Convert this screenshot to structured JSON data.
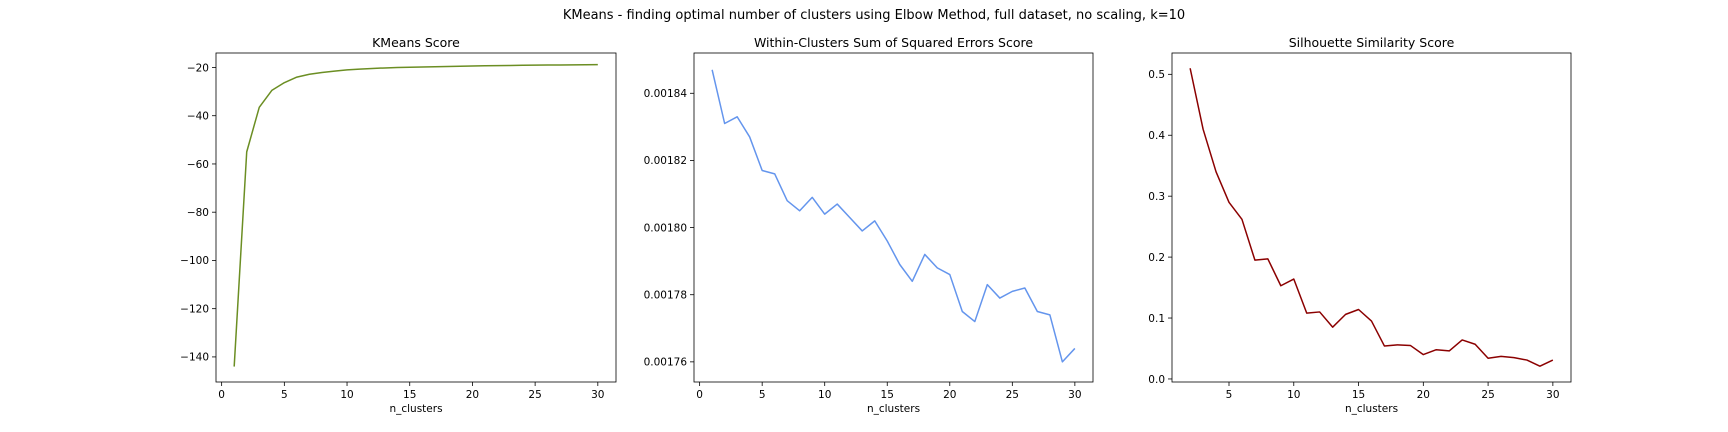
{
  "figure": {
    "suptitle": "KMeans - finding optimal number of clusters using Elbow Method, full dataset, no scaling, k=10"
  },
  "chart_data": [
    {
      "type": "line",
      "title": "KMeans Score",
      "xlabel": "n_clusters",
      "ylabel": "",
      "color": "#6b8e23",
      "xlim": [
        -0.45,
        31.45
      ],
      "ylim": [
        -150.4,
        -14.0
      ],
      "xticks": [
        0,
        5,
        10,
        15,
        20,
        25,
        30
      ],
      "yticks": [
        -140,
        -120,
        -100,
        -80,
        -60,
        -40,
        -20
      ],
      "ytick_decimals": 0,
      "x": [
        1,
        2,
        3,
        4,
        5,
        6,
        7,
        8,
        9,
        10,
        11,
        12,
        13,
        14,
        15,
        16,
        17,
        18,
        19,
        20,
        21,
        22,
        23,
        24,
        25,
        26,
        27,
        28,
        29,
        30
      ],
      "y": [
        -144.0,
        -55.0,
        -36.5,
        -29.5,
        -26.3,
        -24.0,
        -22.8,
        -22.1,
        -21.5,
        -21.0,
        -20.7,
        -20.4,
        -20.2,
        -20.0,
        -19.9,
        -19.8,
        -19.7,
        -19.6,
        -19.5,
        -19.4,
        -19.3,
        -19.25,
        -19.2,
        -19.1,
        -19.05,
        -19.0,
        -18.95,
        -18.9,
        -18.85,
        -18.8
      ]
    },
    {
      "type": "line",
      "title": "Within-Clusters Sum of Squared Errors Score",
      "xlabel": "n_clusters",
      "ylabel": "",
      "color": "#6495ed",
      "xlim": [
        -0.45,
        31.45
      ],
      "ylim": [
        0.001754,
        0.001852
      ],
      "xticks": [
        0,
        5,
        10,
        15,
        20,
        25,
        30
      ],
      "yticks": [
        0.00176,
        0.00178,
        0.0018,
        0.00182,
        0.00184
      ],
      "ytick_decimals": 5,
      "x": [
        1,
        2,
        3,
        4,
        5,
        6,
        7,
        8,
        9,
        10,
        11,
        12,
        13,
        14,
        15,
        16,
        17,
        18,
        19,
        20,
        21,
        22,
        23,
        24,
        25,
        26,
        27,
        28,
        29,
        30
      ],
      "y": [
        0.001847,
        0.001831,
        0.001833,
        0.001827,
        0.001817,
        0.001816,
        0.001808,
        0.001805,
        0.001809,
        0.001804,
        0.001807,
        0.001803,
        0.001799,
        0.001802,
        0.001796,
        0.001789,
        0.001784,
        0.001792,
        0.001788,
        0.001786,
        0.001775,
        0.001772,
        0.001783,
        0.001779,
        0.001781,
        0.001782,
        0.001775,
        0.001774,
        0.00176,
        0.001764
      ]
    },
    {
      "type": "line",
      "title": "Silhouette Similarity Score",
      "xlabel": "n_clusters",
      "ylabel": "",
      "color": "#8b0000",
      "xlim": [
        0.6,
        31.4
      ],
      "ylim": [
        -0.005,
        0.535
      ],
      "xticks": [
        5,
        10,
        15,
        20,
        25,
        30
      ],
      "yticks": [
        0.0,
        0.1,
        0.2,
        0.3,
        0.4,
        0.5
      ],
      "ytick_decimals": 1,
      "x": [
        2,
        3,
        4,
        5,
        6,
        7,
        8,
        9,
        10,
        11,
        12,
        13,
        14,
        15,
        16,
        17,
        18,
        19,
        20,
        21,
        22,
        23,
        24,
        25,
        26,
        27,
        28,
        29,
        30
      ],
      "y": [
        0.51,
        0.41,
        0.34,
        0.29,
        0.262,
        0.195,
        0.197,
        0.153,
        0.164,
        0.108,
        0.11,
        0.085,
        0.106,
        0.114,
        0.095,
        0.054,
        0.056,
        0.055,
        0.04,
        0.048,
        0.046,
        0.064,
        0.057,
        0.034,
        0.037,
        0.035,
        0.031,
        0.021,
        0.031
      ]
    }
  ]
}
